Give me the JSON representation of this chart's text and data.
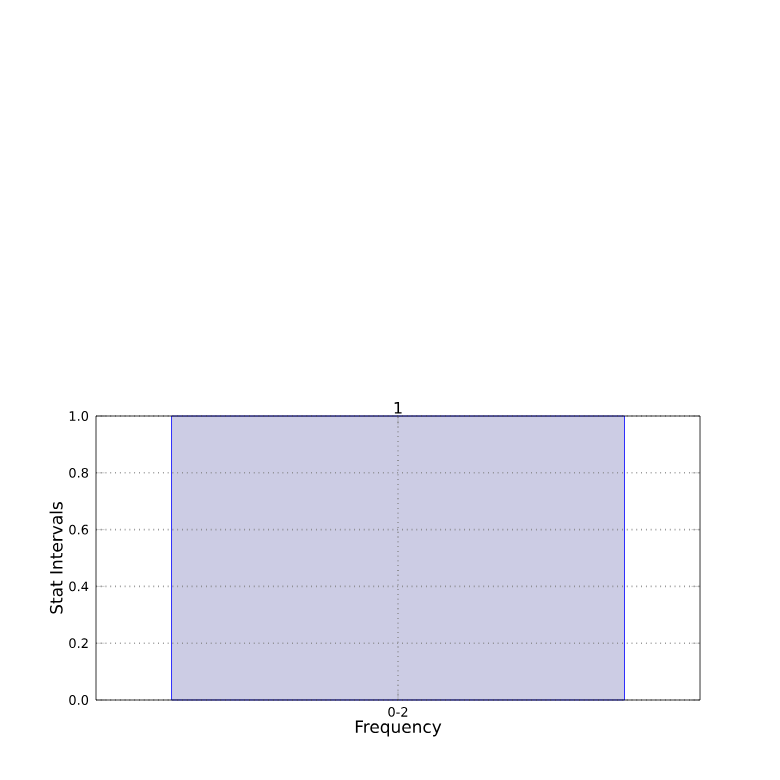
{
  "chart_data": {
    "type": "bar",
    "xlabel": "Frequency",
    "ylabel": "Stat Intervals",
    "categories": [
      "0-2"
    ],
    "values": [
      1
    ],
    "color": "#cccce4",
    "ylim": [
      0,
      1
    ],
    "yticks": [
      {
        "value": 0,
        "label": "0.0"
      },
      {
        "value": 0.2,
        "label": "0.2"
      },
      {
        "value": 0.4,
        "label": "0.4"
      },
      {
        "value": 0.6,
        "label": "0.6"
      },
      {
        "value": 0.8,
        "label": "0.8"
      },
      {
        "value": 1,
        "label": "1.0"
      }
    ],
    "grid": true,
    "data_labels": true
  }
}
